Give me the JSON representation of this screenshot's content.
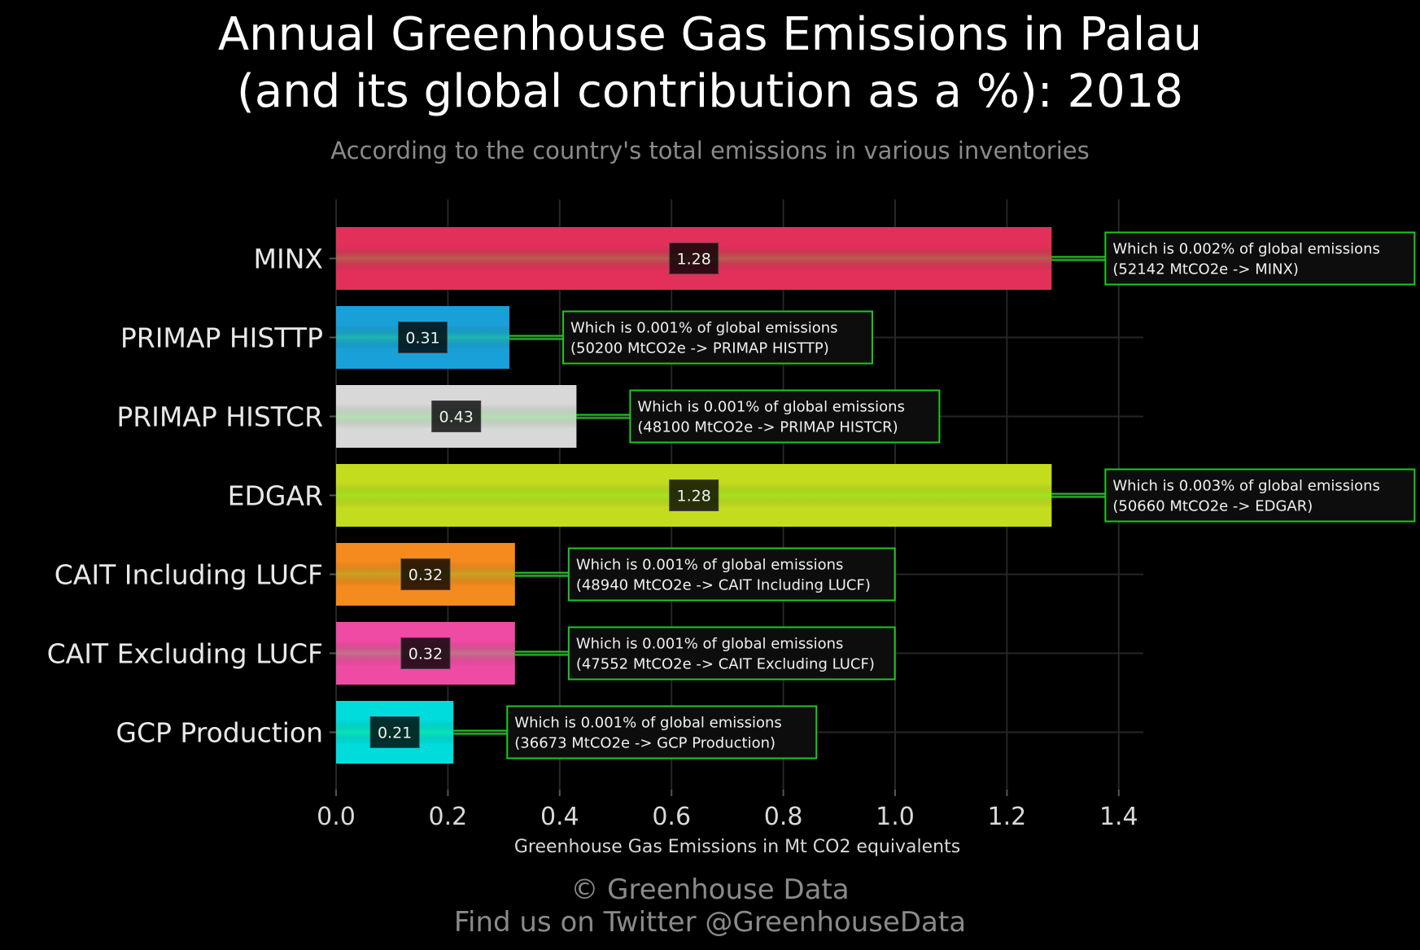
{
  "header": {
    "title_line1": "Annual Greenhouse Gas Emissions in Palau",
    "title_line2": "(and its global contribution as a %): 2018",
    "subtitle": "According to the country's total emissions in various inventories"
  },
  "footer": {
    "credit": "© Greenhouse Data",
    "twitter": "Find us on Twitter @GreenhouseData"
  },
  "chart_data": {
    "type": "bar",
    "orientation": "horizontal",
    "title": "Annual Greenhouse Gas Emissions in Palau (and its global contribution as a %): 2018",
    "subtitle": "According to the country's total emissions in various inventories",
    "xlabel": "Greenhouse Gas Emissions in Mt CO2 equivalents",
    "ylabel": "",
    "xlim": [
      0,
      1.45
    ],
    "xticks": [
      "0.0",
      "0.2",
      "0.4",
      "0.6",
      "0.8",
      "1.0",
      "1.2",
      "1.4"
    ],
    "grid": true,
    "categories": [
      "MINX",
      "PRIMAP HISTTP",
      "PRIMAP HISTCR",
      "EDGAR",
      "CAIT Including LUCF",
      "CAIT Excluding LUCF",
      "GCP Production"
    ],
    "values": [
      1.28,
      0.31,
      0.43,
      1.28,
      0.32,
      0.32,
      0.21
    ],
    "value_labels": [
      "1.28",
      "0.31",
      "0.43",
      "1.28",
      "0.32",
      "0.32",
      "0.21"
    ],
    "colors": [
      "#e3305a",
      "#1aa0d8",
      "#d8d8d8",
      "#c4dc1e",
      "#f58a1e",
      "#ef4aa4",
      "#00dcdc"
    ],
    "annotations": [
      {
        "line1": "Which is 0.002% of global emissions",
        "line2": "(52142 MtCO2e -> MINX)"
      },
      {
        "line1": "Which is 0.001% of global emissions",
        "line2": "(50200 MtCO2e -> PRIMAP HISTTP)"
      },
      {
        "line1": "Which is 0.001% of global emissions",
        "line2": "(48100 MtCO2e -> PRIMAP HISTCR)"
      },
      {
        "line1": "Which is 0.003% of global emissions",
        "line2": "(50660 MtCO2e -> EDGAR)"
      },
      {
        "line1": "Which is 0.001% of global emissions",
        "line2": "(48940 MtCO2e -> CAIT Including LUCF)"
      },
      {
        "line1": "Which is 0.001% of global emissions",
        "line2": "(47552 MtCO2e -> CAIT Excluding LUCF)"
      },
      {
        "line1": "Which is 0.001% of global emissions",
        "line2": "(36673 MtCO2e -> GCP Production)"
      }
    ],
    "annotation_color": "#1ec81e"
  }
}
